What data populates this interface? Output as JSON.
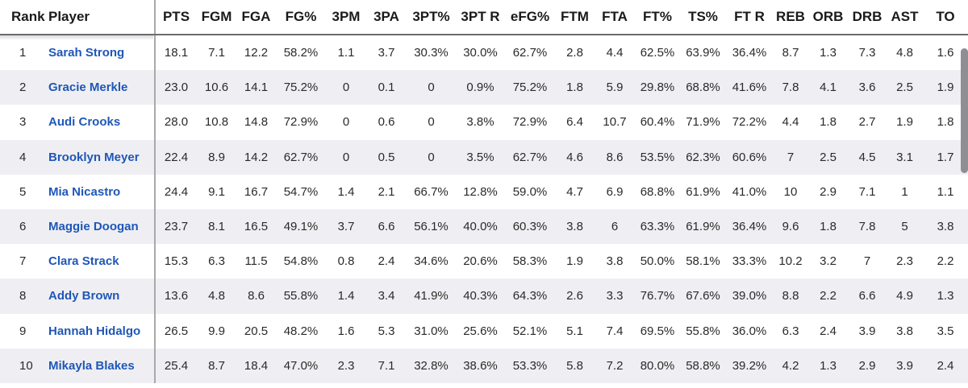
{
  "table": {
    "columns": [
      "Rank",
      "Player",
      "PTS",
      "FGM",
      "FGA",
      "FG%",
      "3PM",
      "3PA",
      "3PT%",
      "3PT R",
      "eFG%",
      "FTM",
      "FTA",
      "FT%",
      "TS%",
      "FT R",
      "REB",
      "ORB",
      "DRB",
      "AST",
      "TO"
    ],
    "rows": [
      [
        "1",
        "Sarah Strong",
        "18.1",
        "7.1",
        "12.2",
        "58.2%",
        "1.1",
        "3.7",
        "30.3%",
        "30.0%",
        "62.7%",
        "2.8",
        "4.4",
        "62.5%",
        "63.9%",
        "36.4%",
        "8.7",
        "1.3",
        "7.3",
        "4.8",
        "1.6"
      ],
      [
        "2",
        "Gracie Merkle",
        "23.0",
        "10.6",
        "14.1",
        "75.2%",
        "0",
        "0.1",
        "0",
        "0.9%",
        "75.2%",
        "1.8",
        "5.9",
        "29.8%",
        "68.8%",
        "41.6%",
        "7.8",
        "4.1",
        "3.6",
        "2.5",
        "1.9"
      ],
      [
        "3",
        "Audi Crooks",
        "28.0",
        "10.8",
        "14.8",
        "72.9%",
        "0",
        "0.6",
        "0",
        "3.8%",
        "72.9%",
        "6.4",
        "10.7",
        "60.4%",
        "71.9%",
        "72.2%",
        "4.4",
        "1.8",
        "2.7",
        "1.9",
        "1.8"
      ],
      [
        "4",
        "Brooklyn Meyer",
        "22.4",
        "8.9",
        "14.2",
        "62.7%",
        "0",
        "0.5",
        "0",
        "3.5%",
        "62.7%",
        "4.6",
        "8.6",
        "53.5%",
        "62.3%",
        "60.6%",
        "7",
        "2.5",
        "4.5",
        "3.1",
        "1.7"
      ],
      [
        "5",
        "Mia Nicastro",
        "24.4",
        "9.1",
        "16.7",
        "54.7%",
        "1.4",
        "2.1",
        "66.7%",
        "12.8%",
        "59.0%",
        "4.7",
        "6.9",
        "68.8%",
        "61.9%",
        "41.0%",
        "10",
        "2.9",
        "7.1",
        "1",
        "1.1"
      ],
      [
        "6",
        "Maggie Doogan",
        "23.7",
        "8.1",
        "16.5",
        "49.1%",
        "3.7",
        "6.6",
        "56.1%",
        "40.0%",
        "60.3%",
        "3.8",
        "6",
        "63.3%",
        "61.9%",
        "36.4%",
        "9.6",
        "1.8",
        "7.8",
        "5",
        "3.8"
      ],
      [
        "7",
        "Clara Strack",
        "15.3",
        "6.3",
        "11.5",
        "54.8%",
        "0.8",
        "2.4",
        "34.6%",
        "20.6%",
        "58.3%",
        "1.9",
        "3.8",
        "50.0%",
        "58.1%",
        "33.3%",
        "10.2",
        "3.2",
        "7",
        "2.3",
        "2.2"
      ],
      [
        "8",
        "Addy Brown",
        "13.6",
        "4.8",
        "8.6",
        "55.8%",
        "1.4",
        "3.4",
        "41.9%",
        "40.3%",
        "64.3%",
        "2.6",
        "3.3",
        "76.7%",
        "67.6%",
        "39.0%",
        "8.8",
        "2.2",
        "6.6",
        "4.9",
        "1.3"
      ],
      [
        "9",
        "Hannah Hidalgo",
        "26.5",
        "9.9",
        "20.5",
        "48.2%",
        "1.6",
        "5.3",
        "31.0%",
        "25.6%",
        "52.1%",
        "5.1",
        "7.4",
        "69.5%",
        "55.8%",
        "36.0%",
        "6.3",
        "2.4",
        "3.9",
        "3.8",
        "3.5"
      ],
      [
        "10",
        "Mikayla Blakes",
        "25.4",
        "8.7",
        "18.4",
        "47.0%",
        "2.3",
        "7.1",
        "32.8%",
        "38.6%",
        "53.3%",
        "5.8",
        "7.2",
        "80.0%",
        "58.8%",
        "39.2%",
        "4.2",
        "1.3",
        "2.9",
        "3.9",
        "2.4"
      ]
    ]
  },
  "colors": {
    "link": "#1f57b8",
    "stripe": "#efeff3",
    "divider": "#a9a9a9"
  }
}
